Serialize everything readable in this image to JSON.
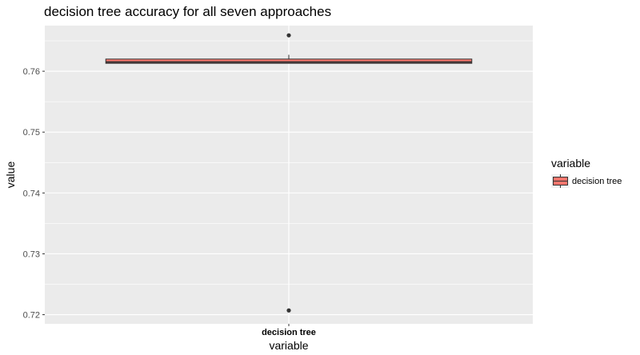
{
  "chart_data": {
    "type": "boxplot",
    "title": "decision tree accuracy for all seven approaches",
    "xlabel": "variable",
    "ylabel": "value",
    "categories": [
      "decision tree"
    ],
    "ylim": [
      0.7185,
      0.7675
    ],
    "yticks": [
      0.72,
      0.73,
      0.74,
      0.75,
      0.76
    ],
    "ytick_labels": [
      "0.72",
      "0.73",
      "0.74",
      "0.75",
      "0.76"
    ],
    "series": [
      {
        "name": "decision tree",
        "category": "decision tree",
        "whisker_low": 0.7613,
        "q1": 0.7613,
        "median": 0.7615,
        "q3": 0.762,
        "whisker_high": 0.7627,
        "outliers": [
          0.7659,
          0.7207
        ],
        "color": "#F8766D"
      }
    ],
    "legend": {
      "title": "variable",
      "position": "right",
      "items": [
        {
          "label": "decision tree",
          "color": "#F8766D"
        }
      ]
    },
    "grid": true,
    "panel_background": "#EBEBEB"
  }
}
